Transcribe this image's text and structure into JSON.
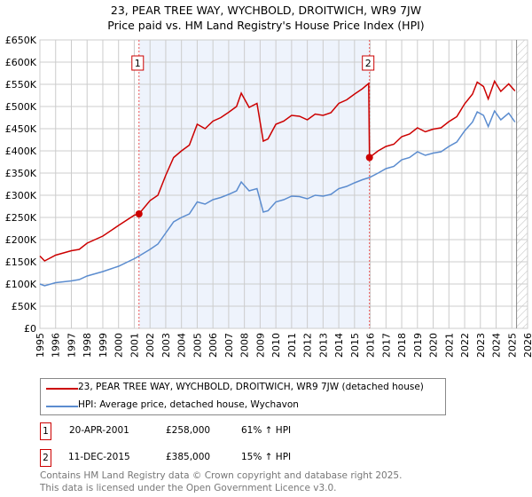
{
  "title": "23, PEAR TREE WAY, WYCHBOLD, DROITWICH, WR9 7JW",
  "subtitle": "Price paid vs. HM Land Registry's House Price Index (HPI)",
  "chart_data": {
    "type": "line",
    "xlim": [
      1995,
      2026
    ],
    "ylim": [
      0,
      650000
    ],
    "yticks": [
      0,
      50000,
      100000,
      150000,
      200000,
      250000,
      300000,
      350000,
      400000,
      450000,
      500000,
      550000,
      600000,
      650000
    ],
    "ytick_labels": [
      "£0",
      "£50K",
      "£100K",
      "£150K",
      "£200K",
      "£250K",
      "£300K",
      "£350K",
      "£400K",
      "£450K",
      "£500K",
      "£550K",
      "£600K",
      "£650K"
    ],
    "xticks": [
      1995,
      1996,
      1997,
      1998,
      1999,
      2000,
      2001,
      2002,
      2003,
      2004,
      2005,
      2006,
      2007,
      2008,
      2009,
      2010,
      2011,
      2012,
      2013,
      2014,
      2015,
      2016,
      2017,
      2018,
      2019,
      2020,
      2021,
      2022,
      2023,
      2024,
      2025,
      2026
    ],
    "grid": true,
    "shaded_range": [
      2001.3,
      2015.95
    ],
    "forecast_hatch_from": 2025.3,
    "series": [
      {
        "name": "23, PEAR TREE WAY, WYCHBOLD, DROITWICH, WR9 7JW (detached house)",
        "color": "#cc0000",
        "x": [
          1995,
          1995.3,
          1996,
          1997,
          1997.5,
          1998,
          1999,
          2000,
          2001,
          2001.3,
          2002,
          2002.5,
          2003,
          2003.5,
          2004,
          2004.5,
          2005,
          2005.5,
          2006,
          2006.5,
          2007,
          2007.5,
          2007.8,
          2008.3,
          2008.8,
          2009.2,
          2009.5,
          2010,
          2010.5,
          2011,
          2011.5,
          2012,
          2012.5,
          2013,
          2013.5,
          2014,
          2014.5,
          2015,
          2015.5,
          2015.9,
          2015.95,
          2016.5,
          2017,
          2017.5,
          2018,
          2018.5,
          2019,
          2019.5,
          2020,
          2020.5,
          2021,
          2021.5,
          2022,
          2022.5,
          2022.8,
          2023.2,
          2023.5,
          2023.9,
          2024.3,
          2024.8,
          2025.2
        ],
        "y": [
          163000,
          152000,
          165000,
          175000,
          178000,
          192000,
          208000,
          232000,
          255000,
          258000,
          288000,
          300000,
          345000,
          385000,
          400000,
          413000,
          460000,
          450000,
          467000,
          475000,
          487000,
          500000,
          530000,
          498000,
          507000,
          422000,
          427000,
          460000,
          467000,
          480000,
          478000,
          470000,
          483000,
          480000,
          486000,
          507000,
          515000,
          528000,
          540000,
          552000,
          385000,
          400000,
          410000,
          415000,
          432000,
          438000,
          452000,
          443000,
          449000,
          452000,
          466000,
          477000,
          506000,
          528000,
          555000,
          545000,
          517000,
          557000,
          534000,
          551000,
          535000
        ]
      },
      {
        "name": "HPI: Average price, detached house, Wychavon",
        "color": "#5b8ccf",
        "x": [
          1995,
          1995.3,
          1996,
          1997,
          1997.5,
          1998,
          1999,
          2000,
          2001,
          2001.3,
          2002,
          2002.5,
          2003,
          2003.5,
          2004,
          2004.5,
          2005,
          2005.5,
          2006,
          2006.5,
          2007,
          2007.5,
          2007.8,
          2008.3,
          2008.8,
          2009.2,
          2009.5,
          2010,
          2010.5,
          2011,
          2011.5,
          2012,
          2012.5,
          2013,
          2013.5,
          2014,
          2014.5,
          2015,
          2015.5,
          2015.95,
          2016.5,
          2017,
          2017.5,
          2018,
          2018.5,
          2019,
          2019.5,
          2020,
          2020.5,
          2021,
          2021.5,
          2022,
          2022.5,
          2022.8,
          2023.2,
          2023.5,
          2023.9,
          2024.3,
          2024.8,
          2025.2
        ],
        "y": [
          100000,
          96000,
          103000,
          107000,
          110000,
          118000,
          128000,
          140000,
          157000,
          163000,
          178000,
          190000,
          215000,
          240000,
          250000,
          258000,
          285000,
          280000,
          290000,
          295000,
          302000,
          310000,
          330000,
          310000,
          315000,
          262000,
          265000,
          285000,
          290000,
          298000,
          297000,
          292000,
          300000,
          298000,
          302000,
          315000,
          320000,
          328000,
          335000,
          340000,
          350000,
          360000,
          365000,
          380000,
          385000,
          398000,
          390000,
          395000,
          398000,
          410000,
          420000,
          445000,
          465000,
          488000,
          480000,
          455000,
          490000,
          470000,
          485000,
          465000
        ]
      }
    ],
    "sales": [
      {
        "label": "1",
        "x": 2001.3,
        "y": 258000,
        "date": "20-APR-2001",
        "price": "£258,000",
        "hpi_note": "61% ↑ HPI"
      },
      {
        "label": "2",
        "x": 2015.95,
        "y": 385000,
        "date": "11-DEC-2015",
        "price": "£385,000",
        "hpi_note": "15% ↑ HPI"
      }
    ]
  },
  "footer": [
    "Contains HM Land Registry data © Crown copyright and database right 2025.",
    "This data is licensed under the Open Government Licence v3.0."
  ]
}
